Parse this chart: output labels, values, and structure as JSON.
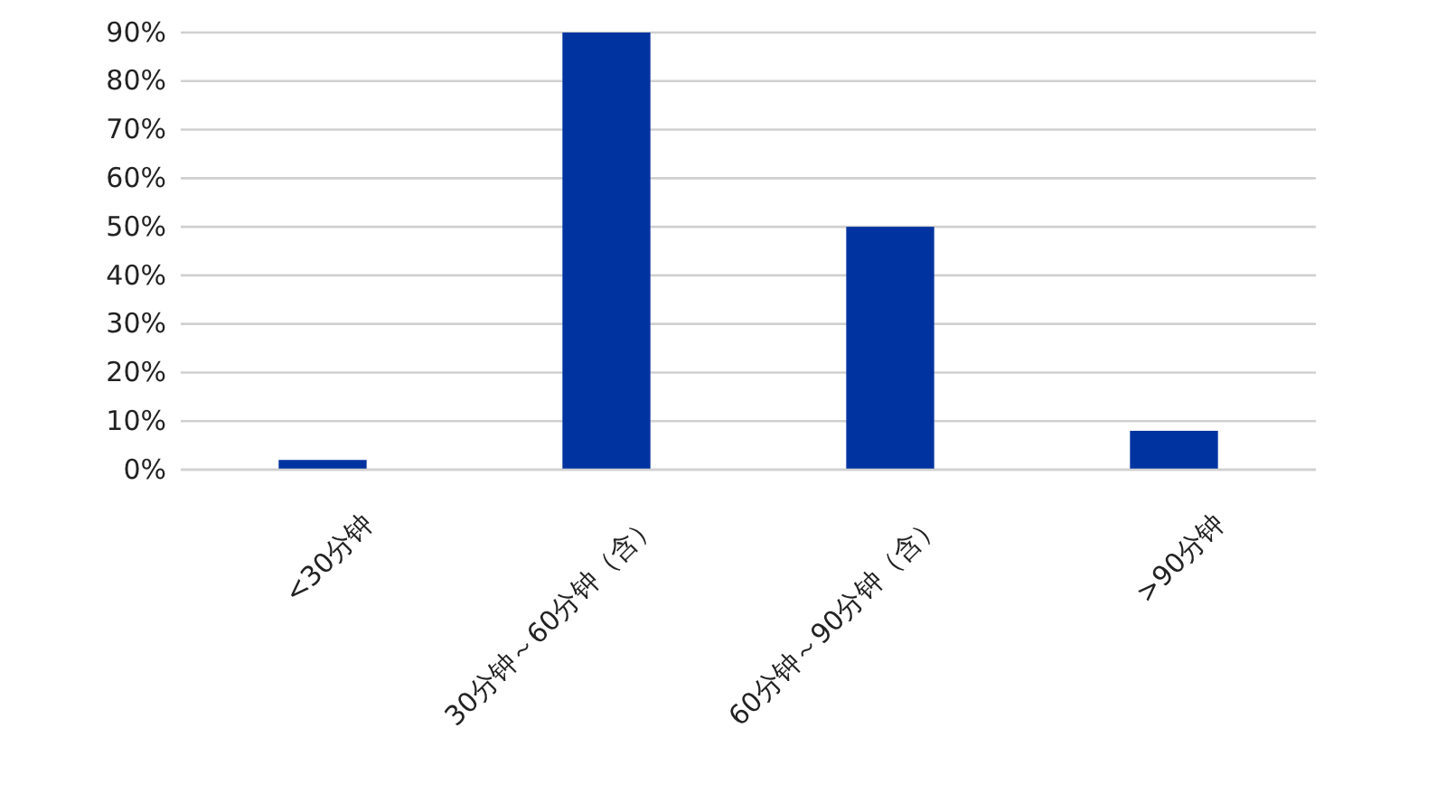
{
  "chart_data": {
    "type": "bar",
    "categories": [
      "<30分钟",
      "30分钟～60分钟（含）",
      "60分钟～90分钟（含）",
      ">90分钟"
    ],
    "values": [
      2,
      90,
      50,
      8
    ],
    "color": "#0033a0",
    "ylim": [
      0,
      90
    ],
    "yticks": [
      {
        "value": 0,
        "label": "0%"
      },
      {
        "value": 10,
        "label": "10%"
      },
      {
        "value": 20,
        "label": "20%"
      },
      {
        "value": 30,
        "label": "30%"
      },
      {
        "value": 40,
        "label": "40%"
      },
      {
        "value": 50,
        "label": "50%"
      },
      {
        "value": 60,
        "label": "60%"
      },
      {
        "value": 70,
        "label": "70%"
      },
      {
        "value": 80,
        "label": "80%"
      },
      {
        "value": 90,
        "label": "90%"
      }
    ],
    "grid": "y"
  }
}
